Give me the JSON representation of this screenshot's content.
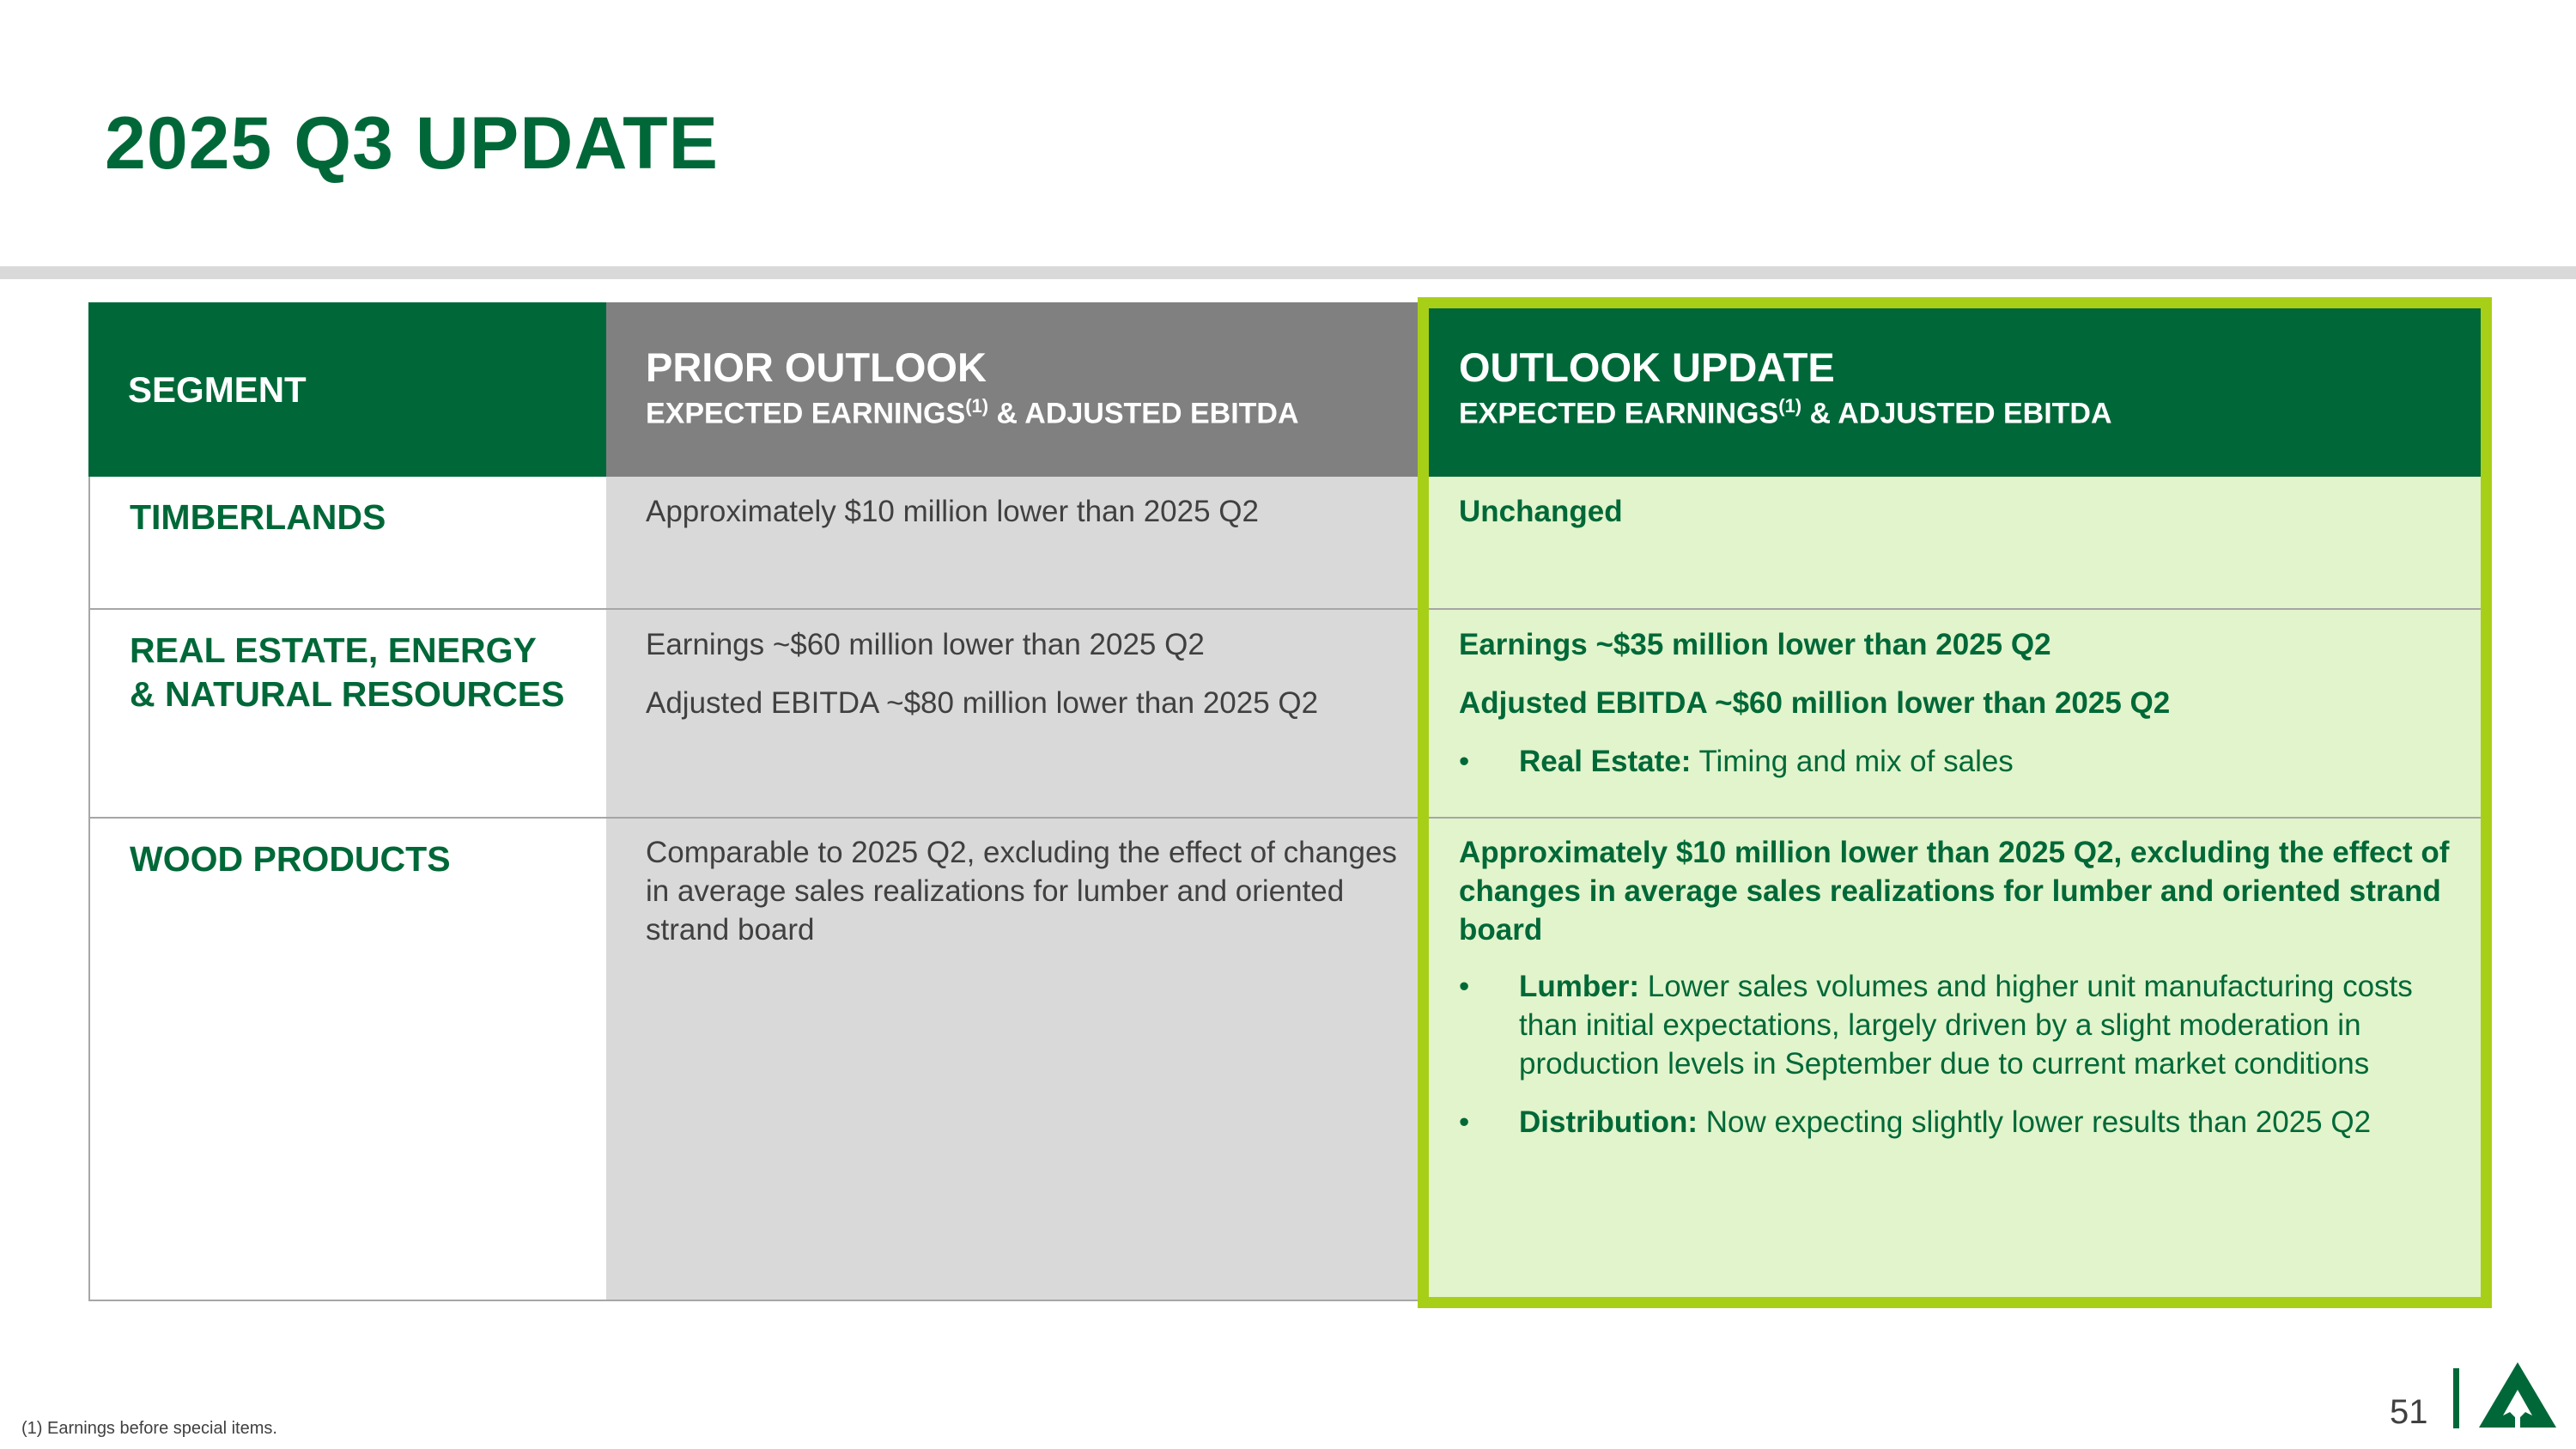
{
  "title": "2025 Q3 UPDATE",
  "table": {
    "headers": {
      "segment": "SEGMENT",
      "prior_title": "PRIOR OUTLOOK",
      "prior_sub_a": "EXPECTED EARNINGS",
      "prior_sup": "(1)",
      "prior_sub_b": " & ADJUSTED EBITDA",
      "update_title": "OUTLOOK UPDATE",
      "update_sub_a": "EXPECTED EARNINGS",
      "update_sup": "(1)",
      "update_sub_b": " & ADJUSTED EBITDA"
    },
    "rows": [
      {
        "segment": "TIMBERLANDS",
        "prior": [
          "Approximately $10 million lower than 2025 Q2"
        ],
        "update": [
          "Unchanged"
        ]
      },
      {
        "segment_a": "REAL ESTATE, ENERGY",
        "segment_b": "& NATURAL RESOURCES",
        "prior": [
          "Earnings ~$60 million lower than 2025 Q2",
          "Adjusted EBITDA ~$80 million lower than 2025 Q2"
        ],
        "update": [
          "Earnings ~$35 million lower than 2025 Q2",
          "Adjusted EBITDA ~$60 million lower than 2025 Q2"
        ],
        "bullets": [
          {
            "label": "Real Estate:",
            "text": " Timing and mix of sales"
          }
        ]
      },
      {
        "segment": "WOOD PRODUCTS",
        "prior": [
          "Comparable to 2025 Q2, excluding the effect of changes in average sales realizations for lumber and oriented strand board"
        ],
        "update": [
          "Approximately $10 million lower than 2025 Q2, excluding the effect of changes in average sales realizations for lumber and oriented strand board"
        ],
        "bullets": [
          {
            "label": "Lumber:",
            "text": " Lower sales volumes and higher unit manufacturing costs than initial expectations, largely driven by a slight moderation in production levels in September due to current market conditions"
          },
          {
            "label": "Distribution:",
            "text": " Now expecting slightly lower results than 2025 Q2"
          }
        ]
      }
    ]
  },
  "bullet_char": "•",
  "footnote": "(1) Earnings before special items.",
  "page_number": "51",
  "logo_icon": "tree-triangle-logo",
  "colors": {
    "brand_green": "#006838",
    "highlight_border": "#a8cf17",
    "update_bg": "#e2f4cb",
    "prior_bg": "#d9d9d9",
    "prior_header": "#808080"
  }
}
